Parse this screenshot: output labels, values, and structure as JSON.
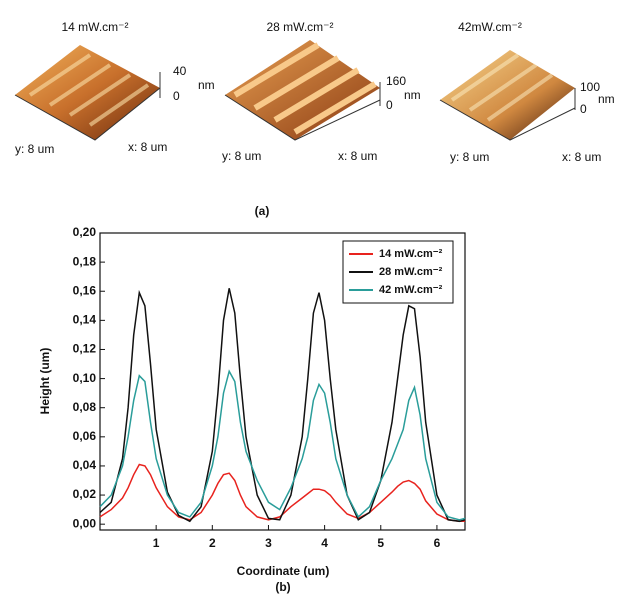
{
  "figure_a": {
    "label": "(a)",
    "images": [
      {
        "power": "14 mW.cm⁻²",
        "scale_max": "40",
        "scale_min": "0",
        "unit": "nm",
        "y_size": "y: 8 um",
        "x_size": "x: 8 um"
      },
      {
        "power": "28 mW.cm⁻²",
        "scale_max": "160",
        "scale_min": "0",
        "unit": "nm",
        "y_size": "y: 8 um",
        "x_size": "x: 8 um"
      },
      {
        "power": "42mW.cm⁻²",
        "scale_max": "100",
        "scale_min": "0",
        "unit": "nm",
        "y_size": "y: 8 um",
        "x_size": "x: 8 um"
      }
    ]
  },
  "chart_data": {
    "type": "line",
    "caption": "(b)",
    "x_label": "Coordinate (um)",
    "y_label": "Height  (um)",
    "xlim": [
      0,
      6.5
    ],
    "xticks": [
      1,
      2,
      3,
      4,
      5,
      6
    ],
    "ylim": [
      -0.004,
      0.2
    ],
    "yticks": [
      {
        "value": 0,
        "label": "0,00"
      },
      {
        "value": 0.02,
        "label": "0,02"
      },
      {
        "value": 0.04,
        "label": "0,04"
      },
      {
        "value": 0.06,
        "label": "0,06"
      },
      {
        "value": 0.08,
        "label": "0,08"
      },
      {
        "value": 0.1,
        "label": "0,10"
      },
      {
        "value": 0.12,
        "label": "0,12"
      },
      {
        "value": 0.14,
        "label": "0,14"
      },
      {
        "value": 0.16,
        "label": "0,16"
      },
      {
        "value": 0.18,
        "label": "0,18"
      },
      {
        "value": 0.2,
        "label": "0,20"
      }
    ],
    "legend": "upper right",
    "x": [
      0,
      0.2,
      0.4,
      0.5,
      0.6,
      0.7,
      0.8,
      0.9,
      1.0,
      1.2,
      1.4,
      1.6,
      1.8,
      2.0,
      2.1,
      2.2,
      2.3,
      2.4,
      2.5,
      2.6,
      2.8,
      3.0,
      3.2,
      3.4,
      3.6,
      3.7,
      3.8,
      3.9,
      4.0,
      4.1,
      4.2,
      4.4,
      4.6,
      4.8,
      5.0,
      5.2,
      5.3,
      5.4,
      5.5,
      5.6,
      5.7,
      5.8,
      6.0,
      6.2,
      6.4,
      6.5
    ],
    "series": [
      {
        "name": "14 mW.cm⁻²",
        "color": "#e8231e",
        "values": [
          0.005,
          0.01,
          0.018,
          0.025,
          0.034,
          0.041,
          0.04,
          0.034,
          0.025,
          0.012,
          0.005,
          0.003,
          0.008,
          0.02,
          0.028,
          0.034,
          0.035,
          0.03,
          0.02,
          0.012,
          0.005,
          0.003,
          0.005,
          0.012,
          0.018,
          0.021,
          0.024,
          0.024,
          0.023,
          0.02,
          0.015,
          0.007,
          0.004,
          0.008,
          0.015,
          0.022,
          0.026,
          0.029,
          0.03,
          0.028,
          0.024,
          0.016,
          0.007,
          0.003,
          0.002,
          0.002
        ]
      },
      {
        "name": "28 mW.cm⁻²",
        "color": "#111111",
        "values": [
          0.008,
          0.015,
          0.045,
          0.08,
          0.13,
          0.159,
          0.15,
          0.11,
          0.065,
          0.022,
          0.006,
          0.002,
          0.012,
          0.05,
          0.09,
          0.14,
          0.162,
          0.145,
          0.1,
          0.06,
          0.02,
          0.004,
          0.003,
          0.02,
          0.06,
          0.1,
          0.145,
          0.159,
          0.14,
          0.1,
          0.065,
          0.02,
          0.003,
          0.008,
          0.03,
          0.07,
          0.1,
          0.13,
          0.15,
          0.148,
          0.115,
          0.07,
          0.02,
          0.003,
          0.002,
          0.003
        ]
      },
      {
        "name": "42 mW.cm⁻²",
        "color": "#2a9d9a",
        "values": [
          0.012,
          0.02,
          0.04,
          0.06,
          0.085,
          0.102,
          0.098,
          0.07,
          0.045,
          0.02,
          0.008,
          0.005,
          0.015,
          0.04,
          0.06,
          0.09,
          0.105,
          0.098,
          0.07,
          0.05,
          0.03,
          0.015,
          0.01,
          0.025,
          0.045,
          0.06,
          0.085,
          0.096,
          0.09,
          0.07,
          0.045,
          0.02,
          0.005,
          0.012,
          0.03,
          0.045,
          0.055,
          0.065,
          0.085,
          0.094,
          0.075,
          0.045,
          0.015,
          0.005,
          0.003,
          0.004
        ]
      }
    ]
  }
}
